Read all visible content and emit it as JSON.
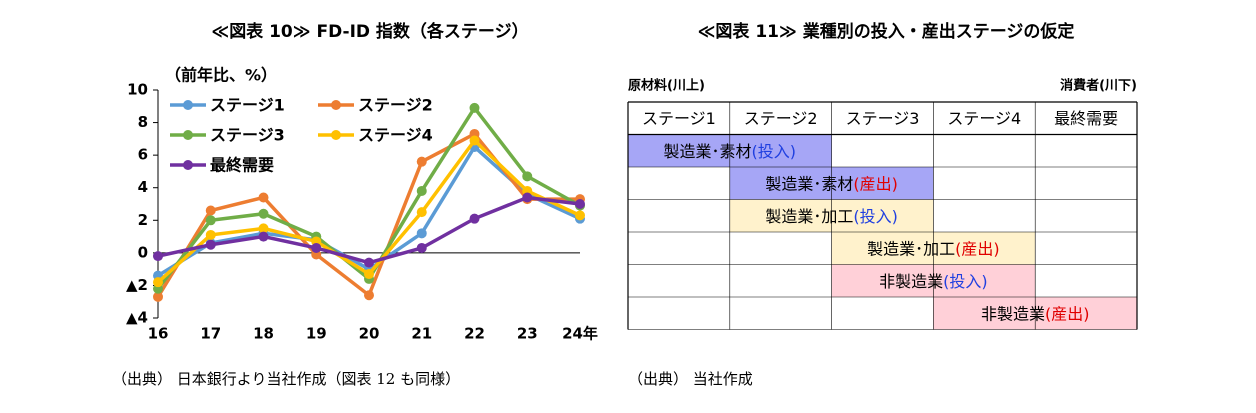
{
  "chart_data": {
    "type": "line",
    "title": "≪図表 10≫ FD-ID 指数（各ステージ）",
    "y_label": "（前年比、%）",
    "source": "（出典） 日本銀行より当社作成（図表 12 も同様）",
    "categories": [
      "16",
      "17",
      "18",
      "19",
      "20",
      "21",
      "22",
      "23",
      "24年"
    ],
    "series": [
      {
        "name": "ステージ1",
        "color": "#5b9bd5",
        "values": [
          -1.4,
          0.6,
          1.2,
          0.8,
          -1.0,
          1.2,
          6.5,
          3.6,
          2.1
        ]
      },
      {
        "name": "ステージ2",
        "color": "#ed7d31",
        "values": [
          -2.7,
          2.6,
          3.4,
          -0.1,
          -2.6,
          5.6,
          7.3,
          3.3,
          3.3
        ]
      },
      {
        "name": "ステージ3",
        "color": "#70ad47",
        "values": [
          -2.2,
          2.0,
          2.4,
          1.0,
          -1.6,
          3.8,
          8.9,
          4.7,
          2.9
        ]
      },
      {
        "name": "ステージ4",
        "color": "#ffc000",
        "values": [
          -1.8,
          1.1,
          1.5,
          0.7,
          -1.3,
          2.5,
          6.9,
          3.8,
          2.3
        ]
      },
      {
        "name": "最終需要",
        "color": "#7030a0",
        "values": [
          -0.2,
          0.5,
          1.0,
          0.3,
          -0.6,
          0.3,
          2.1,
          3.4,
          3.0
        ]
      }
    ],
    "ylim": [
      -4,
      10
    ],
    "yticks": [
      {
        "value": -4,
        "label": "▲4"
      },
      {
        "value": -2,
        "label": "▲2"
      },
      0,
      2,
      4,
      6,
      8,
      10
    ],
    "grid": false,
    "legend": "upper left"
  },
  "diagram": {
    "title": "≪図表 11≫ 業種別の投入・産出ステージの仮定",
    "left_label": "原材料(川上)",
    "right_label": "消費者(川下)",
    "headers": [
      "ステージ1",
      "ステージ2",
      "ステージ3",
      "ステージ4",
      "最終需要"
    ],
    "rows": [
      {
        "label": "製造業･素材",
        "note": "(投入)"
      },
      {
        "label": "製造業･素材",
        "note": "(産出)"
      },
      {
        "label": "製造業･加工",
        "note": "(投入)"
      },
      {
        "label": "製造業･加工",
        "note": "(産出)"
      },
      {
        "label": "非製造業",
        "note": "(投入)"
      },
      {
        "label": "非製造業",
        "note": "(産出)"
      }
    ],
    "source": "（出典） 当社作成"
  }
}
